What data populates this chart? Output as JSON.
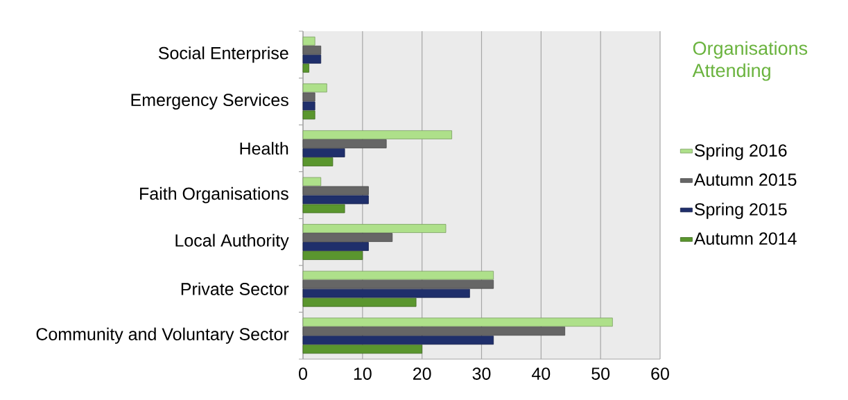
{
  "chart_data": {
    "type": "bar",
    "orientation": "horizontal",
    "title": "Organisations Attending",
    "categories": [
      "Social Enterprise",
      "Emergency Services",
      "Health",
      "Faith Organisations",
      "Local Authority",
      "Private Sector",
      "Community and Voluntary Sector"
    ],
    "series": [
      {
        "name": "Spring 2016",
        "color": "#aee08a",
        "values": [
          2,
          4,
          25,
          3,
          24,
          32,
          52
        ]
      },
      {
        "name": "Autumn 2015",
        "color": "#666666",
        "values": [
          3,
          2,
          14,
          11,
          15,
          32,
          44
        ]
      },
      {
        "name": "Spring 2015",
        "color": "#1f2f6b",
        "values": [
          3,
          2,
          7,
          11,
          11,
          28,
          32
        ]
      },
      {
        "name": "Autumn 2014",
        "color": "#5a962e",
        "values": [
          1,
          2,
          5,
          7,
          10,
          19,
          20
        ]
      }
    ],
    "xlim": [
      0,
      60
    ],
    "xticks": [
      0,
      10,
      20,
      30,
      40,
      50,
      60
    ],
    "grid": "x",
    "legend": "right"
  }
}
